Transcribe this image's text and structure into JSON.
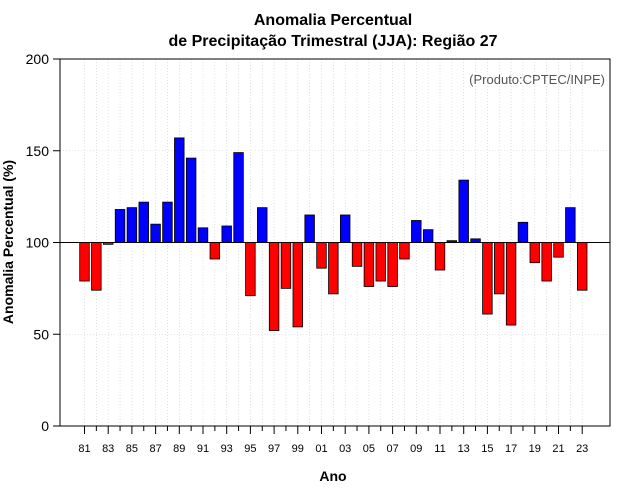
{
  "chart_data": {
    "type": "bar",
    "title_line1": "Anomalia Percentual",
    "title_line2": "de Precipitação Trimestral (JJA): Região 27",
    "xlabel": "Ano",
    "ylabel": "Anomalia Percentual (%)",
    "source": "(Produto:CPTEC/INPE)",
    "ylim": [
      0,
      200
    ],
    "yticks": [
      0,
      50,
      100,
      150,
      200
    ],
    "baseline": 100,
    "colors": {
      "above": "#0000ff",
      "below": "#ff0000",
      "outline": "#000000",
      "grid": "#cccccc"
    },
    "tick_labels": [
      "81",
      "83",
      "85",
      "87",
      "89",
      "91",
      "93",
      "95",
      "97",
      "99",
      "01",
      "03",
      "05",
      "07",
      "09",
      "11",
      "13",
      "15",
      "17",
      "19",
      "21",
      "23"
    ],
    "categories": [
      "81",
      "82",
      "83",
      "84",
      "85",
      "86",
      "87",
      "88",
      "89",
      "90",
      "91",
      "92",
      "93",
      "94",
      "95",
      "96",
      "97",
      "98",
      "99",
      "00",
      "01",
      "02",
      "03",
      "04",
      "05",
      "06",
      "07",
      "08",
      "09",
      "10",
      "11",
      "12",
      "13",
      "14",
      "15",
      "16",
      "17",
      "18",
      "19",
      "20",
      "21",
      "22",
      "23"
    ],
    "values": [
      79,
      74,
      99,
      118,
      119,
      122,
      110,
      122,
      157,
      146,
      108,
      91,
      109,
      149,
      71,
      119,
      52,
      75,
      54,
      115,
      86,
      72,
      115,
      87,
      76,
      79,
      76,
      91,
      112,
      107,
      85,
      101,
      134,
      102,
      61,
      72,
      55,
      111,
      89,
      79,
      92,
      119,
      74
    ]
  }
}
